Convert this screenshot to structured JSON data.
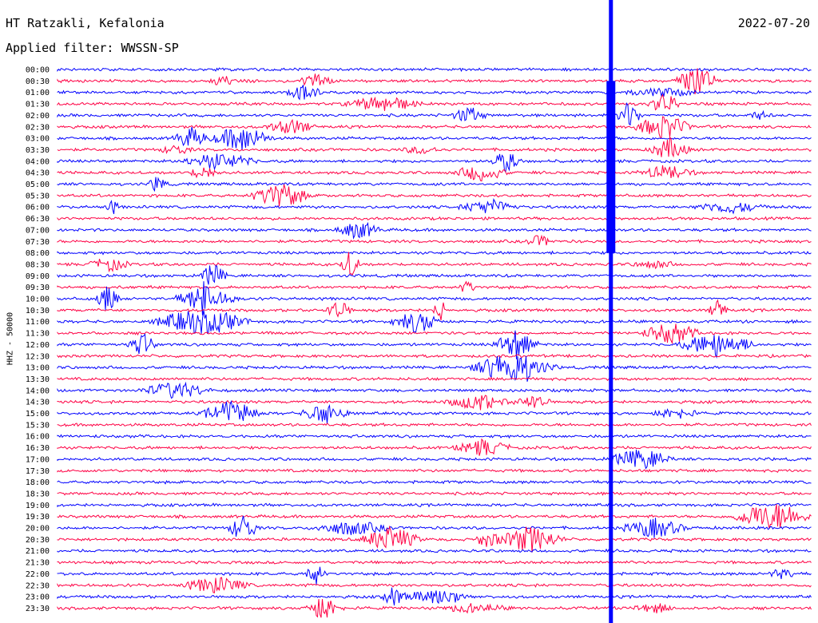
{
  "header": {
    "station": "HT Ratzakli, Kefalonia",
    "date": "2022-07-20",
    "filter": "Applied filter: WWSSN-SP"
  },
  "chart_data": {
    "type": "line",
    "title": "HT Ratzakli, Kefalonia",
    "subtitle": "Applied filter: WWSSN-SP",
    "date": "2022-07-20",
    "ylabel": "HHZ - 50000",
    "xlabel": "",
    "row_labels": [
      "00:00",
      "00:30",
      "01:00",
      "01:30",
      "02:00",
      "02:30",
      "03:00",
      "03:30",
      "04:00",
      "04:30",
      "05:00",
      "05:30",
      "06:00",
      "06:30",
      "07:00",
      "07:30",
      "08:00",
      "08:30",
      "09:00",
      "09:30",
      "10:00",
      "10:30",
      "11:00",
      "11:30",
      "12:00",
      "12:30",
      "13:00",
      "13:30",
      "14:00",
      "14:30",
      "15:00",
      "15:30",
      "16:00",
      "16:30",
      "17:00",
      "17:30",
      "18:00",
      "18:30",
      "19:00",
      "19:30",
      "20:00",
      "20:30",
      "21:00",
      "21:30",
      "22:00",
      "22:30",
      "23:00",
      "23:30"
    ],
    "trace_colors": [
      "#0000ff",
      "#ff0044"
    ],
    "grid": false,
    "notable_event": {
      "row": "00:30",
      "minute": 22
    },
    "minutes_per_row": 30
  }
}
